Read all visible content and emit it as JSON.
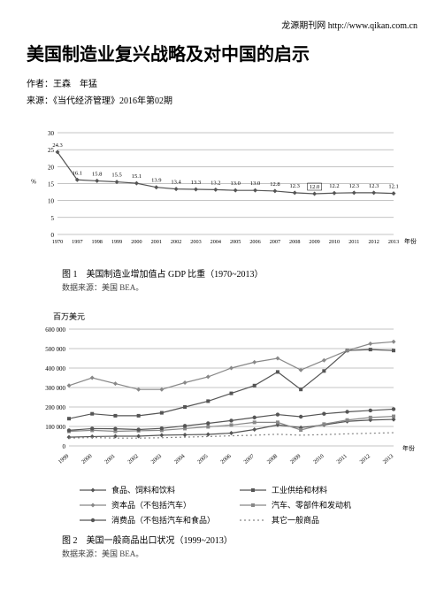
{
  "header": {
    "site_name": "龙源期刊网",
    "site_url": "http://www.qikan.com.cn"
  },
  "article": {
    "title": "美国制造业复兴战略及对中国的启示",
    "author_label": "作者：",
    "authors": "王森　年猛",
    "source_label": "来源：",
    "source": "《当代经济管理》2016年第02期"
  },
  "chart1": {
    "type": "line",
    "caption": "图 1　美国制造业增加值占 GDP 比重（1970~2013）",
    "source": "数据来源：美国 BEA。",
    "ylabel": "%",
    "xlabel": "年份",
    "ylim": [
      0,
      30
    ],
    "ytick_step": 5,
    "yticks": [
      0,
      5,
      10,
      15,
      20,
      25,
      30
    ],
    "xlabels": [
      "1970",
      "1997",
      "1998",
      "1999",
      "2000",
      "2001",
      "2002",
      "2003",
      "2004",
      "2005",
      "2006",
      "2007",
      "2008",
      "2009",
      "2010",
      "2011",
      "2012",
      "2013"
    ],
    "values": [
      24.3,
      16.1,
      15.8,
      15.5,
      15.1,
      13.9,
      13.4,
      13.3,
      13.2,
      13.0,
      13.0,
      12.8,
      12.3,
      12.0,
      12.2,
      12.3,
      12.3,
      12.1
    ],
    "highlight_index": 13,
    "line_color": "#555555",
    "marker_color": "#555555",
    "grid_color": "#888888",
    "bg_color": "#ffffff",
    "label_fontsize": 7,
    "tick_fontsize": 7
  },
  "chart2": {
    "type": "multi-line",
    "caption": "图 2　美国一般商品出口状况（1999~2013）",
    "source": "数据来源：美国 BEA。",
    "ylabel_unit": "百万美元",
    "xlabel": "年份",
    "ylim": [
      0,
      600000
    ],
    "ytick_step": 100000,
    "yticks": [
      0,
      100000,
      200000,
      300000,
      400000,
      500000,
      600000
    ],
    "ytick_labels": [
      "0",
      "100 000",
      "200 000",
      "300 000",
      "400 000",
      "500 000",
      "600 000"
    ],
    "xlabels": [
      "1999",
      "2000",
      "2001",
      "2002",
      "2003",
      "2004",
      "2005",
      "2006",
      "2007",
      "2008",
      "2009",
      "2010",
      "2011",
      "2012",
      "2013"
    ],
    "series": [
      {
        "name": "食品、饲料和饮料",
        "marker": "diamond",
        "dash": "none",
        "color": "#555",
        "values": [
          45000,
          48000,
          50000,
          50000,
          55000,
          57000,
          59000,
          66000,
          84000,
          108000,
          94000,
          108000,
          126000,
          133000,
          136000
        ]
      },
      {
        "name": "工业供给和材料",
        "marker": "square",
        "dash": "none",
        "color": "#555",
        "values": [
          140000,
          165000,
          155000,
          155000,
          170000,
          200000,
          230000,
          270000,
          310000,
          380000,
          290000,
          385000,
          490000,
          495000,
          490000
        ]
      },
      {
        "name": "资本品（不包括汽车）",
        "marker": "diamond",
        "dash": "none",
        "color": "#888",
        "values": [
          310000,
          350000,
          320000,
          290000,
          290000,
          325000,
          355000,
          400000,
          430000,
          450000,
          390000,
          440000,
          490000,
          525000,
          535000
        ]
      },
      {
        "name": "汽车、零部件和发动机",
        "marker": "square",
        "dash": "none",
        "color": "#888",
        "values": [
          75000,
          80000,
          75000,
          78000,
          80000,
          89000,
          98000,
          107000,
          121000,
          121000,
          82000,
          112000,
          133000,
          146000,
          152000
        ]
      },
      {
        "name": "消费品（不包括汽车和食品）",
        "marker": "circle",
        "dash": "none",
        "color": "#555",
        "values": [
          80000,
          89000,
          88000,
          84000,
          90000,
          103000,
          116000,
          130000,
          146000,
          161000,
          150000,
          165000,
          175000,
          182000,
          189000
        ]
      },
      {
        "name": "其它一般商品",
        "marker": "none",
        "dash": "dot",
        "color": "#888",
        "values": [
          40000,
          43000,
          40000,
          40000,
          42000,
          45000,
          48000,
          52000,
          55000,
          60000,
          55000,
          58000,
          62000,
          65000,
          68000
        ]
      }
    ],
    "grid_color": "#888888",
    "bg_color": "#ffffff",
    "tick_fontsize": 7
  }
}
